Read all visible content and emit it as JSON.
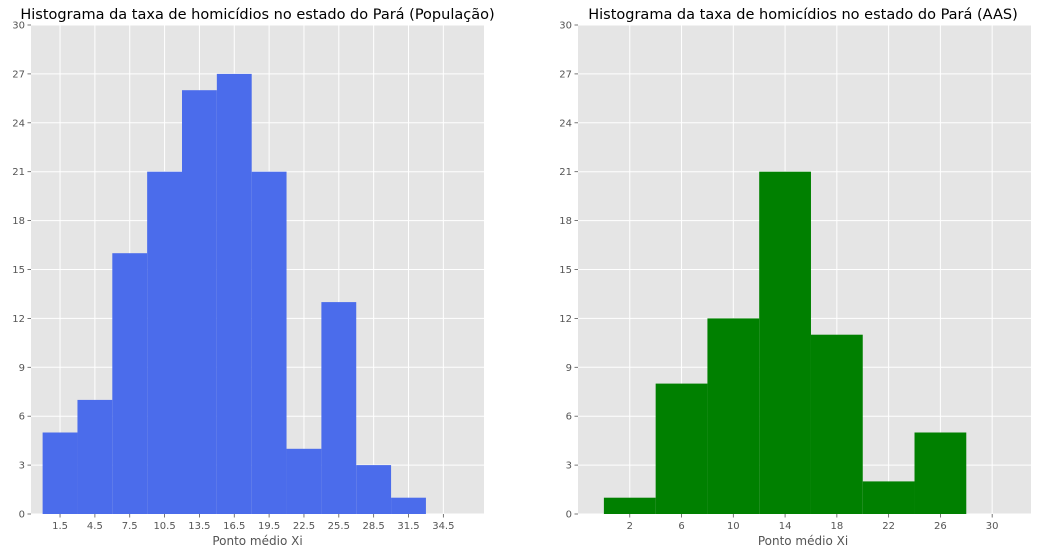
{
  "chart_data": [
    {
      "type": "bar",
      "title": "Histograma da taxa de homicídios no estado do Pará (População)",
      "xlabel": "Ponto médio Xi",
      "ylabel": "",
      "bar_color": "#4b6ceb",
      "background_color": "#e5e5e5",
      "grid": true,
      "xlim": [
        -1.0,
        38.0
      ],
      "ylim": [
        0,
        30
      ],
      "xticks": [
        "1.5",
        "4.5",
        "7.5",
        "10.5",
        "13.5",
        "16.5",
        "19.5",
        "22.5",
        "25.5",
        "28.5",
        "31.5",
        "34.5"
      ],
      "yticks": [
        "0",
        "3",
        "6",
        "9",
        "12",
        "15",
        "18",
        "21",
        "24",
        "27",
        "30"
      ],
      "bins": [
        {
          "x0": 0,
          "x1": 3,
          "value": 5
        },
        {
          "x0": 3,
          "x1": 6,
          "value": 7
        },
        {
          "x0": 6,
          "x1": 9,
          "value": 16
        },
        {
          "x0": 9,
          "x1": 12,
          "value": 21
        },
        {
          "x0": 12,
          "x1": 15,
          "value": 26
        },
        {
          "x0": 15,
          "x1": 18,
          "value": 27
        },
        {
          "x0": 18,
          "x1": 21,
          "value": 21
        },
        {
          "x0": 21,
          "x1": 24,
          "value": 4
        },
        {
          "x0": 24,
          "x1": 27,
          "value": 13
        },
        {
          "x0": 27,
          "x1": 30,
          "value": 3
        },
        {
          "x0": 30,
          "x1": 33,
          "value": 1
        }
      ]
    },
    {
      "type": "bar",
      "title": "Histograma da taxa de homicídios no estado do Pará (AAS)",
      "xlabel": "Ponto médio Xi",
      "ylabel": "",
      "bar_color": "#008000",
      "background_color": "#e5e5e5",
      "grid": true,
      "xlim": [
        -2.0,
        33.0
      ],
      "ylim": [
        0,
        30
      ],
      "xticks": [
        "2",
        "6",
        "10",
        "14",
        "18",
        "22",
        "26",
        "30"
      ],
      "yticks": [
        "0",
        "3",
        "6",
        "9",
        "12",
        "15",
        "18",
        "21",
        "24",
        "27",
        "30"
      ],
      "bins": [
        {
          "x0": 0,
          "x1": 4,
          "value": 1
        },
        {
          "x0": 4,
          "x1": 8,
          "value": 8
        },
        {
          "x0": 8,
          "x1": 12,
          "value": 12
        },
        {
          "x0": 12,
          "x1": 16,
          "value": 21
        },
        {
          "x0": 16,
          "x1": 20,
          "value": 11
        },
        {
          "x0": 20,
          "x1": 24,
          "value": 2
        },
        {
          "x0": 24,
          "x1": 28,
          "value": 5
        }
      ]
    }
  ]
}
